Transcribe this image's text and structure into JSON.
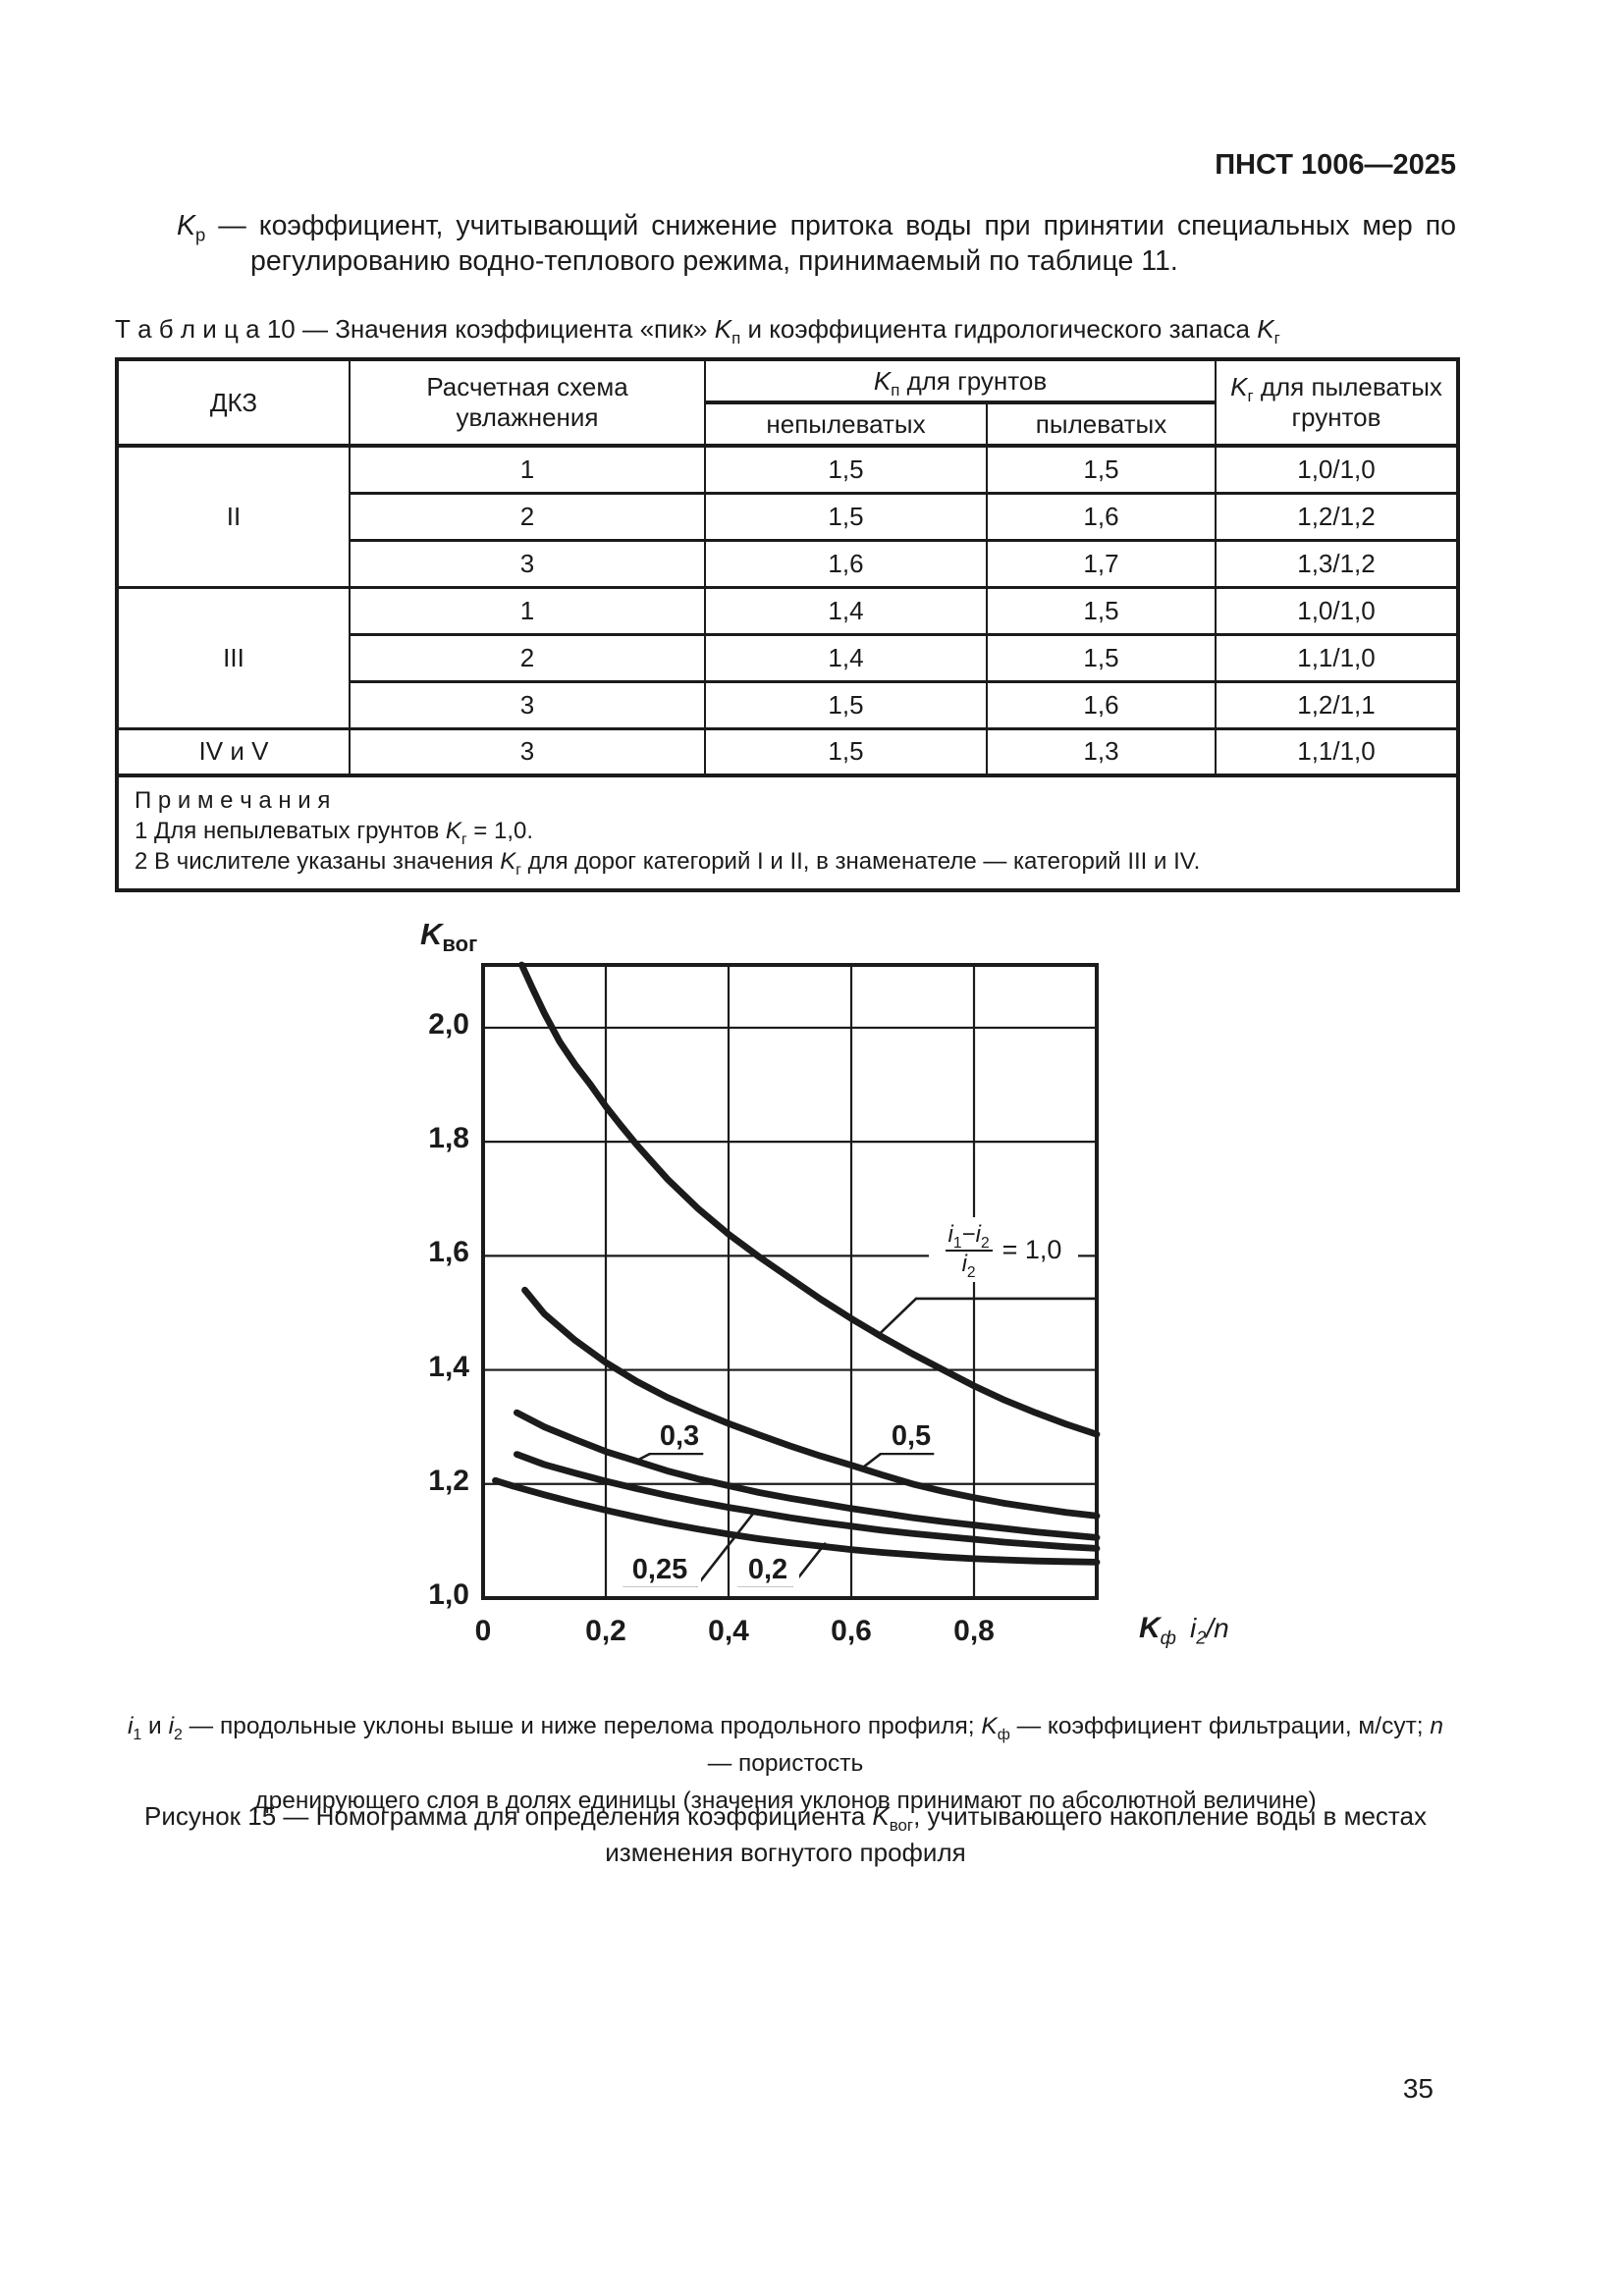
{
  "page": {
    "code": "ПНСТ 1006—2025",
    "number": "35"
  },
  "intro": {
    "k": "K",
    "k_sub": "р",
    "line1_rest": " — коэффициент, учитывающий снижение притока воды при принятии специальных мер по",
    "line2": "регулированию водно-теплового режима, принимаемый по таблице 11."
  },
  "table_caption": {
    "pre": "Т а б л и ц а   10 — Значения коэффициента «пик» ",
    "k1": "K",
    "s1": "п",
    "mid": " и коэффициента гидрологического запаса ",
    "k2": "K",
    "s2": "г"
  },
  "table": {
    "col1_header": "ДКЗ",
    "col2_header": "Расчетная схема увлажнения",
    "kp_header": {
      "k": "K",
      "sub": "п",
      "rest": " для грунтов"
    },
    "sub_headers": [
      "непылеватых",
      "пылеватых"
    ],
    "kg_header": {
      "k": "K",
      "sub": "г",
      "rest": " для пылеватых грунтов"
    },
    "groups": [
      {
        "dkz": "II",
        "rows": [
          [
            "1",
            "1,5",
            "1,5",
            "1,0/1,0"
          ],
          [
            "2",
            "1,5",
            "1,6",
            "1,2/1,2"
          ],
          [
            "3",
            "1,6",
            "1,7",
            "1,3/1,2"
          ]
        ]
      },
      {
        "dkz": "III",
        "rows": [
          [
            "1",
            "1,4",
            "1,5",
            "1,0/1,0"
          ],
          [
            "2",
            "1,4",
            "1,5",
            "1,1/1,0"
          ],
          [
            "3",
            "1,5",
            "1,6",
            "1,2/1,1"
          ]
        ]
      },
      {
        "dkz": "IV и V",
        "rows": [
          [
            "3",
            "1,5",
            "1,3",
            "1,1/1,0"
          ]
        ]
      }
    ],
    "notes_title": "П р и м е ч а н и я",
    "note1": {
      "pre": "1 Для непылеватых грунтов ",
      "k": "K",
      "sub": "г",
      "post": " = 1,0."
    },
    "note2": {
      "pre": "2 В числителе указаны значения ",
      "k": "K",
      "sub": "г",
      "post": " для дорог категорий I и II, в знаменателе — категорий III и IV."
    }
  },
  "chart": {
    "type": "line",
    "ylabel": {
      "k": "K",
      "sub": "вог"
    },
    "xlabel": {
      "k": "K",
      "ksub": "ф",
      "i": "i",
      "isub": "2",
      "rest": "/n"
    },
    "xlim": [
      0,
      1.0
    ],
    "ylim": [
      1.0,
      2.11
    ],
    "grid": true,
    "x_grid": [
      0.2,
      0.4,
      0.6,
      0.8
    ],
    "y_grid": [
      1.2,
      1.4,
      1.6,
      1.8,
      2.0
    ],
    "x_ticks": [
      {
        "v": 0,
        "label": "0"
      },
      {
        "v": 0.2,
        "label": "0,2"
      },
      {
        "v": 0.4,
        "label": "0,4"
      },
      {
        "v": 0.6,
        "label": "0,6"
      },
      {
        "v": 0.8,
        "label": "0,8"
      }
    ],
    "y_ticks": [
      {
        "v": 2.0,
        "label": "2,0"
      },
      {
        "v": 1.8,
        "label": "1,8"
      },
      {
        "v": 1.6,
        "label": "1,6"
      },
      {
        "v": 1.4,
        "label": "1,4"
      },
      {
        "v": 1.2,
        "label": "1,2"
      },
      {
        "v": 1.0,
        "label": "1,0"
      }
    ],
    "curves": [
      {
        "name": "(i1-i2)/i2 = 1,0",
        "points": [
          [
            0.063,
            2.11
          ],
          [
            0.08,
            2.07
          ],
          [
            0.1,
            2.025
          ],
          [
            0.125,
            1.975
          ],
          [
            0.15,
            1.935
          ],
          [
            0.175,
            1.9
          ],
          [
            0.2,
            1.862
          ],
          [
            0.225,
            1.828
          ],
          [
            0.25,
            1.795
          ],
          [
            0.275,
            1.765
          ],
          [
            0.3,
            1.735
          ],
          [
            0.35,
            1.683
          ],
          [
            0.4,
            1.638
          ],
          [
            0.45,
            1.598
          ],
          [
            0.5,
            1.561
          ],
          [
            0.55,
            1.524
          ],
          [
            0.6,
            1.49
          ],
          [
            0.65,
            1.458
          ],
          [
            0.7,
            1.428
          ],
          [
            0.75,
            1.4
          ],
          [
            0.8,
            1.372
          ],
          [
            0.85,
            1.347
          ],
          [
            0.9,
            1.325
          ],
          [
            0.95,
            1.305
          ],
          [
            1.0,
            1.287
          ]
        ]
      },
      {
        "name": "0,5",
        "points": [
          [
            0.068,
            1.54
          ],
          [
            0.1,
            1.498
          ],
          [
            0.15,
            1.452
          ],
          [
            0.2,
            1.413
          ],
          [
            0.25,
            1.38
          ],
          [
            0.3,
            1.352
          ],
          [
            0.35,
            1.328
          ],
          [
            0.4,
            1.306
          ],
          [
            0.45,
            1.286
          ],
          [
            0.5,
            1.267
          ],
          [
            0.55,
            1.249
          ],
          [
            0.6,
            1.233
          ],
          [
            0.65,
            1.216
          ],
          [
            0.7,
            1.2
          ],
          [
            0.75,
            1.187
          ],
          [
            0.8,
            1.176
          ],
          [
            0.85,
            1.166
          ],
          [
            0.9,
            1.158
          ],
          [
            0.95,
            1.15
          ],
          [
            1.0,
            1.144
          ]
        ]
      },
      {
        "name": "0,3",
        "points": [
          [
            0.055,
            1.325
          ],
          [
            0.1,
            1.3
          ],
          [
            0.15,
            1.278
          ],
          [
            0.2,
            1.257
          ],
          [
            0.25,
            1.24
          ],
          [
            0.3,
            1.223
          ],
          [
            0.35,
            1.209
          ],
          [
            0.4,
            1.197
          ],
          [
            0.45,
            1.185
          ],
          [
            0.5,
            1.175
          ],
          [
            0.55,
            1.166
          ],
          [
            0.6,
            1.157
          ],
          [
            0.65,
            1.149
          ],
          [
            0.7,
            1.141
          ],
          [
            0.75,
            1.134
          ],
          [
            0.8,
            1.128
          ],
          [
            0.85,
            1.122
          ],
          [
            0.9,
            1.116
          ],
          [
            0.95,
            1.111
          ],
          [
            1.0,
            1.106
          ]
        ]
      },
      {
        "name": "0,25",
        "points": [
          [
            0.055,
            1.252
          ],
          [
            0.1,
            1.234
          ],
          [
            0.15,
            1.219
          ],
          [
            0.2,
            1.205
          ],
          [
            0.25,
            1.192
          ],
          [
            0.3,
            1.18
          ],
          [
            0.35,
            1.169
          ],
          [
            0.4,
            1.159
          ],
          [
            0.45,
            1.15
          ],
          [
            0.5,
            1.141
          ],
          [
            0.55,
            1.133
          ],
          [
            0.6,
            1.126
          ],
          [
            0.65,
            1.119
          ],
          [
            0.7,
            1.113
          ],
          [
            0.75,
            1.108
          ],
          [
            0.8,
            1.103
          ],
          [
            0.85,
            1.098
          ],
          [
            0.9,
            1.094
          ],
          [
            0.95,
            1.09
          ],
          [
            1.0,
            1.087
          ]
        ]
      },
      {
        "name": "0,2",
        "points": [
          [
            0.02,
            1.206
          ],
          [
            0.05,
            1.196
          ],
          [
            0.1,
            1.181
          ],
          [
            0.15,
            1.167
          ],
          [
            0.2,
            1.154
          ],
          [
            0.25,
            1.142
          ],
          [
            0.3,
            1.131
          ],
          [
            0.35,
            1.121
          ],
          [
            0.4,
            1.112
          ],
          [
            0.45,
            1.104
          ],
          [
            0.5,
            1.097
          ],
          [
            0.55,
            1.091
          ],
          [
            0.6,
            1.085
          ],
          [
            0.65,
            1.08
          ],
          [
            0.7,
            1.076
          ],
          [
            0.75,
            1.072
          ],
          [
            0.8,
            1.069
          ],
          [
            0.85,
            1.067
          ],
          [
            0.9,
            1.065
          ],
          [
            0.95,
            1.064
          ],
          [
            1.0,
            1.063
          ]
        ]
      }
    ],
    "leaders": [
      [
        [
          0.272,
          1.253
        ],
        [
          0.357,
          1.253
        ]
      ],
      [
        [
          0.272,
          1.253
        ],
        [
          0.2495,
          1.2405
        ]
      ],
      [
        [
          0.648,
          1.253
        ],
        [
          0.733,
          1.253
        ]
      ],
      [
        [
          0.648,
          1.253
        ],
        [
          0.619,
          1.229
        ]
      ],
      [
        [
          0.2288,
          1.0224
        ],
        [
          0.3488,
          1.0224
        ]
      ],
      [
        [
          0.3488,
          1.0224
        ],
        [
          0.44,
          1.148
        ]
      ],
      [
        [
          0.416,
          1.0224
        ],
        [
          0.504,
          1.0224
        ]
      ],
      [
        [
          0.504,
          1.0224
        ],
        [
          0.557,
          1.0952
        ]
      ],
      [
        [
          0.7056,
          1.525
        ],
        [
          1.0,
          1.525
        ]
      ],
      [
        [
          0.7056,
          1.525
        ],
        [
          0.6448,
          1.462
        ]
      ]
    ],
    "curve_labels": {
      "c03": "0,3",
      "c05": "0,5",
      "c025": "0,25",
      "c02": "0,2"
    },
    "ratio_label": {
      "num_i1": "i",
      "num_i1_sub": "1",
      "minus": "−",
      "num_i2": "i",
      "num_i2_sub": "2",
      "den_i": "i",
      "den_i_sub": "2",
      "equals": "= 1,0"
    }
  },
  "fig_note": {
    "i1": "i",
    "s1": "1",
    "mid1": " и ",
    "i2": "i",
    "s2": "2",
    "mid2": " — продольные уклоны выше и ниже перелома продольного профиля; ",
    "k": "K",
    "ks": "ф",
    "mid3": " — коэффициент фильтрации, м/сут; ",
    "n": "n",
    "mid4": " — пористость",
    "line2": "дренирующего слоя в долях единицы (значения уклонов принимают по абсолютной величине)"
  },
  "fig_caption": {
    "pre": "Рисунок 15 — Номограмма для определения коэффициента ",
    "k": "K",
    "ks": "вог",
    "post": ", учитывающего накопление воды в местах",
    "line2": "изменения вогнутого профиля"
  }
}
